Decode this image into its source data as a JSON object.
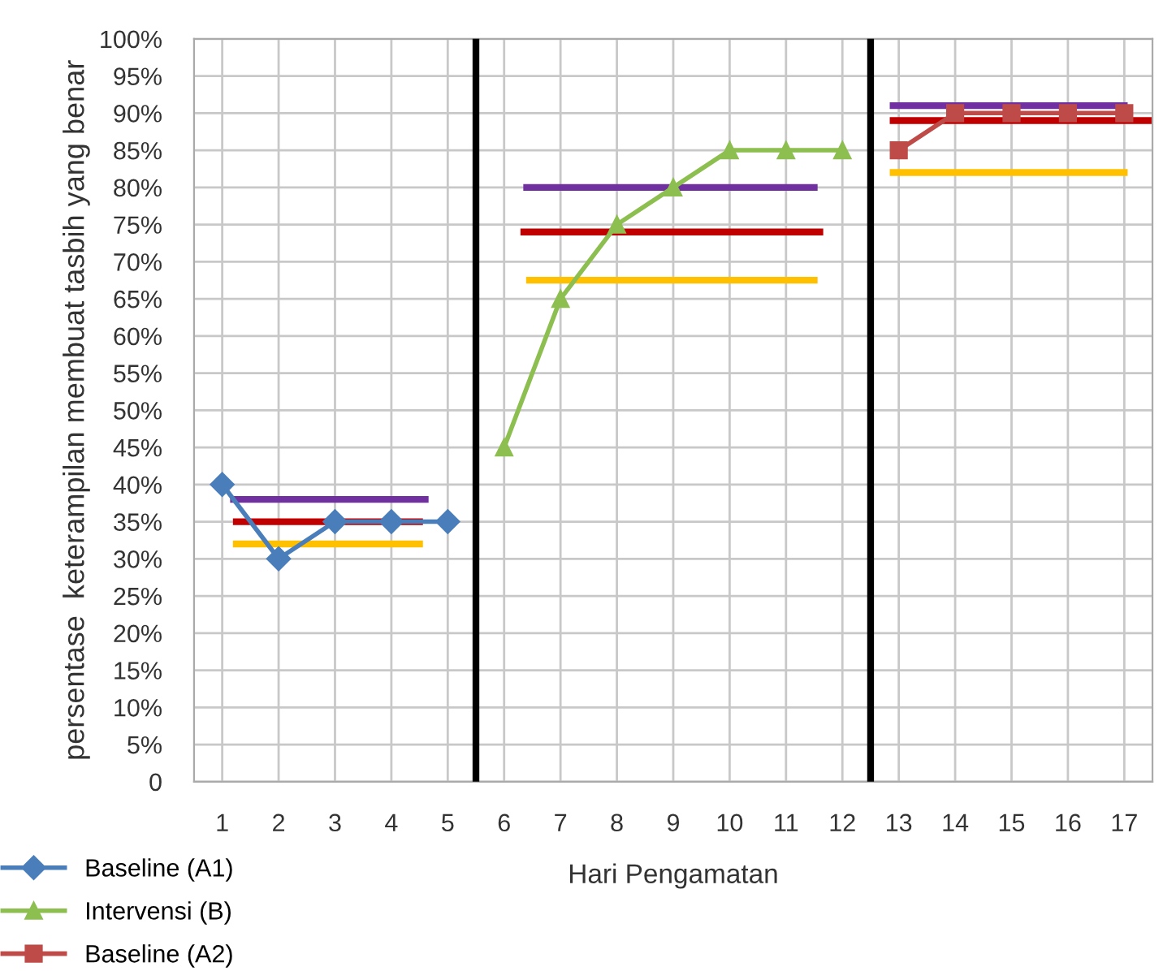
{
  "chart_data": {
    "type": "line",
    "xlabel": "Hari Pengamatan",
    "ylabel": "persentase  keterampilan membuat tasbih yang benar",
    "xlim": [
      0.5,
      17.5
    ],
    "xticks": [
      1,
      2,
      3,
      4,
      5,
      6,
      7,
      8,
      9,
      10,
      11,
      12,
      13,
      14,
      15,
      16,
      17
    ],
    "ylim": [
      0,
      100
    ],
    "yticks": [
      0,
      {
        "value": 5,
        "label": "5%"
      },
      {
        "value": 10,
        "label": "10%"
      },
      {
        "value": 15,
        "label": "15%"
      },
      {
        "value": 20,
        "label": "20%"
      },
      {
        "value": 25,
        "label": "25%"
      },
      {
        "value": 30,
        "label": "30%"
      },
      {
        "value": 35,
        "label": "35%"
      },
      {
        "value": 40,
        "label": "40%"
      },
      {
        "value": 45,
        "label": "45%"
      },
      {
        "value": 50,
        "label": "50%"
      },
      {
        "value": 55,
        "label": "55%"
      },
      {
        "value": 60,
        "label": "60%"
      },
      {
        "value": 65,
        "label": "65%"
      },
      {
        "value": 70,
        "label": "70%"
      },
      {
        "value": 75,
        "label": "75%"
      },
      {
        "value": 80,
        "label": "80%"
      },
      {
        "value": 85,
        "label": "85%"
      },
      {
        "value": 90,
        "label": "90%"
      },
      {
        "value": 95,
        "label": "95%"
      },
      {
        "value": 100,
        "label": "100%"
      }
    ],
    "grid": true,
    "legend": "bottom left",
    "series": [
      {
        "name": "Baseline (A1)",
        "color": "#4a7ebb",
        "marker": "diamond",
        "x": [
          1,
          2,
          3,
          4,
          5
        ],
        "values": [
          40,
          30,
          35,
          35,
          35
        ]
      },
      {
        "name": "Intervensi (B)",
        "color": "#8cbf4f",
        "marker": "triangle",
        "x": [
          6,
          7,
          8,
          9,
          10,
          11,
          12
        ],
        "values": [
          45,
          65,
          75,
          80,
          85,
          85,
          85
        ]
      },
      {
        "name": "Baseline (A2)",
        "color": "#be4b48",
        "marker": "square",
        "x": [
          13,
          14,
          15,
          16,
          17
        ],
        "values": [
          85,
          90,
          90,
          90,
          90
        ]
      },
      {
        "color": "#7030a0",
        "marker": "none",
        "x": [
          1.2,
          4.6
        ],
        "values": [
          38,
          38
        ]
      },
      {
        "color": "#c00000",
        "marker": "none",
        "x": [
          1.25,
          4.5
        ],
        "values": [
          35,
          35
        ]
      },
      {
        "color": "#ffc000",
        "marker": "none",
        "x": [
          1.25,
          4.5
        ],
        "values": [
          32,
          32
        ]
      },
      {
        "color": "#7030a0",
        "marker": "none",
        "x": [
          6.4,
          11.5
        ],
        "values": [
          80,
          80
        ]
      },
      {
        "color": "#c00000",
        "marker": "none",
        "x": [
          6.35,
          11.6
        ],
        "values": [
          74,
          74
        ]
      },
      {
        "color": "#ffc000",
        "marker": "none",
        "x": [
          6.45,
          11.5
        ],
        "values": [
          67.5,
          67.5
        ]
      },
      {
        "color": "#7030a0",
        "marker": "none",
        "x": [
          12.9,
          17.0
        ],
        "values": [
          91,
          91
        ]
      },
      {
        "color": "#c00000",
        "marker": "none",
        "x": [
          12.9,
          17.5
        ],
        "values": [
          89,
          89
        ]
      },
      {
        "color": "#ffc000",
        "marker": "none",
        "x": [
          12.9,
          17.0
        ],
        "values": [
          82,
          82
        ]
      }
    ],
    "ref_lines": [
      {
        "axis": "x",
        "value": 5.5,
        "color": "#000000"
      },
      {
        "axis": "x",
        "value": 12.5,
        "color": "#000000"
      }
    ]
  }
}
